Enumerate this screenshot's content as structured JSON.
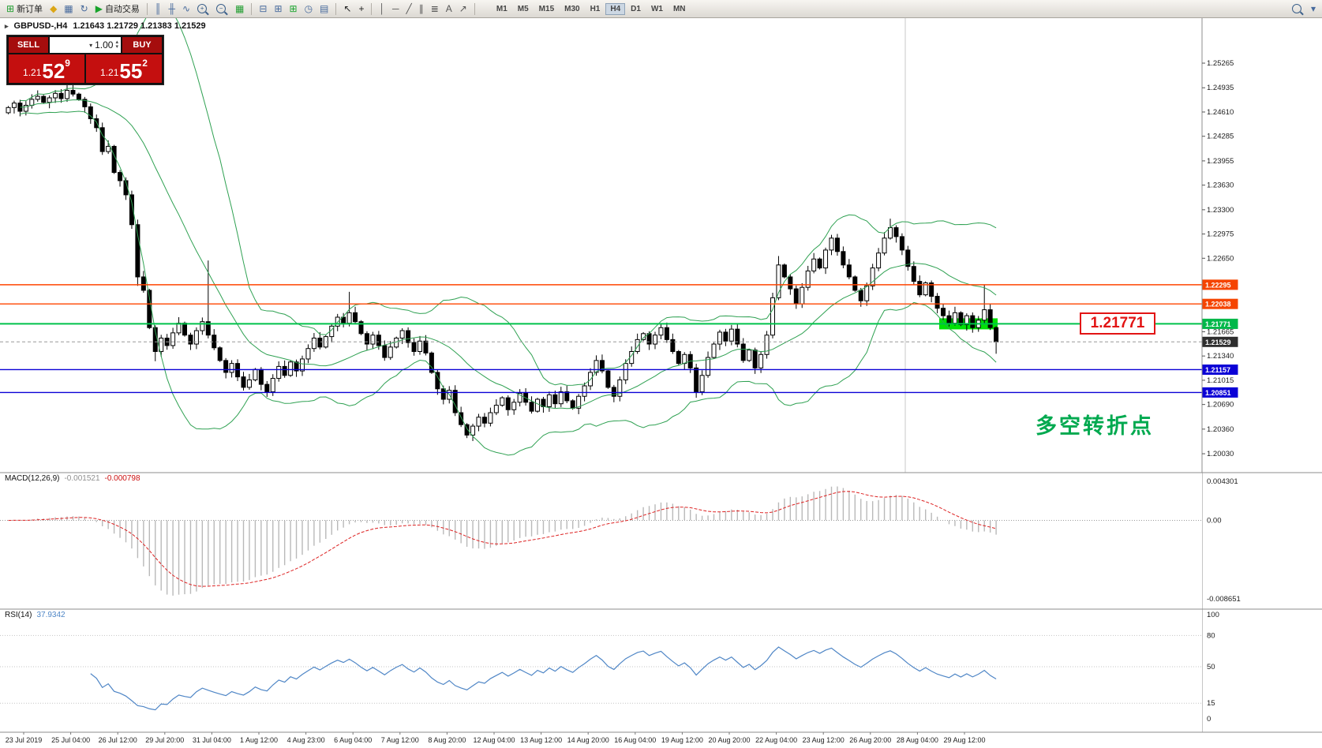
{
  "toolbar": {
    "items": [
      {
        "type": "button",
        "name": "new-order-button",
        "glyph": "⊞",
        "color": "#1f9d2f",
        "label": "新订单"
      },
      {
        "type": "icon",
        "name": "market-watch-icon",
        "glyph": "◆",
        "color": "#dba617"
      },
      {
        "type": "icon",
        "name": "data-window-icon",
        "glyph": "▦",
        "color": "#46699c"
      },
      {
        "type": "icon",
        "name": "navigator-icon",
        "glyph": "↻",
        "color": "#46699c"
      },
      {
        "type": "button",
        "name": "autotrading-button",
        "glyph": "▶",
        "color": "#18a32b",
        "label": "自动交易"
      },
      {
        "type": "sep"
      },
      {
        "type": "icon",
        "name": "bar-chart-icon",
        "glyph": "║",
        "color": "#46699c"
      },
      {
        "type": "icon",
        "name": "candlestick-chart-icon",
        "glyph": "╫",
        "color": "#46699c"
      },
      {
        "type": "icon",
        "name": "line-chart-icon",
        "glyph": "∿",
        "color": "#46699c"
      },
      {
        "type": "mag",
        "name": "zoom-in-icon",
        "sign": "+"
      },
      {
        "type": "mag",
        "name": "zoom-out-icon",
        "sign": "−"
      },
      {
        "type": "icon",
        "name": "grid-icon",
        "glyph": "▦",
        "color": "#1f9d2f"
      },
      {
        "type": "sep"
      },
      {
        "type": "icon",
        "name": "tile-windows-icon",
        "glyph": "⊟",
        "color": "#46699c"
      },
      {
        "type": "icon",
        "name": "cascade-windows-icon",
        "glyph": "⊞",
        "color": "#46699c"
      },
      {
        "type": "icon",
        "name": "new-chart-icon",
        "glyph": "⊞",
        "color": "#18a32b"
      },
      {
        "type": "icon",
        "name": "clock-icon",
        "glyph": "◷",
        "color": "#46699c"
      },
      {
        "type": "icon",
        "name": "chart-profile-icon",
        "glyph": "▤",
        "color": "#46699c"
      },
      {
        "type": "sep"
      },
      {
        "type": "icon",
        "name": "cursor-icon",
        "glyph": "↖",
        "color": "#222222"
      },
      {
        "type": "icon",
        "name": "crosshair-icon",
        "glyph": "+",
        "color": "#222222"
      },
      {
        "type": "sep"
      },
      {
        "type": "icon",
        "name": "vertical-line-tool-icon",
        "glyph": "│",
        "color": "#555555"
      },
      {
        "type": "icon",
        "name": "horizontal-line-tool-icon",
        "glyph": "─",
        "color": "#555555"
      },
      {
        "type": "icon",
        "name": "trendline-tool-icon",
        "glyph": "╱",
        "color": "#555555"
      },
      {
        "type": "icon",
        "name": "channel-tool-icon",
        "glyph": "∥",
        "color": "#555555"
      },
      {
        "type": "icon",
        "name": "fibonacci-tool-icon",
        "glyph": "≣",
        "color": "#555555"
      },
      {
        "type": "icon",
        "name": "text-tool-icon",
        "glyph": "A",
        "color": "#555555"
      },
      {
        "type": "icon",
        "name": "shapes-tool-icon",
        "glyph": "↗",
        "color": "#555555"
      },
      {
        "type": "sep"
      },
      {
        "type": "tf"
      },
      {
        "type": "right"
      },
      {
        "type": "mag",
        "name": "search-icon",
        "sign": ""
      },
      {
        "type": "icon",
        "name": "options-icon",
        "glyph": "▾",
        "color": "#46699c"
      }
    ],
    "timeframes": [
      "M1",
      "M5",
      "M15",
      "M30",
      "H1",
      "H4",
      "D1",
      "W1",
      "MN"
    ],
    "active_timeframe": "H4"
  },
  "chart": {
    "symbol_title": "GBPUSD-,H4",
    "ohlc_text": "1.21643 1.21729 1.21383 1.21529"
  },
  "trade_panel": {
    "sell_label": "SELL",
    "buy_label": "BUY",
    "volume": "1.00",
    "sell_price": {
      "small": "1.21",
      "big": "52",
      "sup": "9"
    },
    "buy_price": {
      "small": "1.21",
      "big": "55",
      "sup": "2"
    }
  },
  "icons": {
    "shift_marker": "▸",
    "spinner_up": "▴",
    "spinner_down": "▾",
    "dropdown": "▾"
  },
  "price_scale": {
    "plain_labels": [
      "1.25265",
      "1.24935",
      "1.24610",
      "1.24285",
      "1.23955",
      "1.23630",
      "1.23300",
      "1.22975",
      "1.22650",
      "1.21665",
      "1.21340",
      "1.21015",
      "1.20690",
      "1.20360",
      "1.20030"
    ],
    "badges": [
      {
        "text": "1.22295",
        "bg": "#f54400"
      },
      {
        "text": "1.22038",
        "bg": "#f54400"
      },
      {
        "text": "1.21771",
        "bg": "#00b84a"
      },
      {
        "text": "1.21529",
        "bg": "#2e2e2e"
      },
      {
        "text": "1.21157",
        "bg": "#0b00d6"
      },
      {
        "text": "1.20851",
        "bg": "#0b00d6"
      }
    ]
  },
  "macd": {
    "name": "MACD(12,26,9)",
    "value": "-0.001521",
    "signal_value": "-0.000798",
    "scale": [
      {
        "label": "0.004301",
        "v": 0.004301
      },
      {
        "label": "0.00",
        "v": 0
      },
      {
        "label": "-0.008651",
        "v": -0.008651
      }
    ],
    "histogram_color": "#b9b9b9",
    "signal_color": "#dd2222"
  },
  "rsi": {
    "name": "RSI(14)",
    "value": "37.9342",
    "scale": [
      {
        "label": "100",
        "v": 100
      },
      {
        "label": "80",
        "v": 80
      },
      {
        "label": "50",
        "v": 50
      },
      {
        "label": "15",
        "v": 15
      },
      {
        "label": "0",
        "v": 0
      }
    ],
    "levels": [
      80,
      50,
      15
    ],
    "line_color": "#4f86c6"
  },
  "timeline": [
    "23 Jul 2019",
    "25 Jul 04:00",
    "26 Jul 12:00",
    "29 Jul 20:00",
    "31 Jul 04:00",
    "1 Aug 12:00",
    "4 Aug 23:00",
    "6 Aug 04:00",
    "7 Aug 12:00",
    "8 Aug 20:00",
    "12 Aug 04:00",
    "13 Aug 12:00",
    "14 Aug 20:00",
    "16 Aug 04:00",
    "19 Aug 12:00",
    "20 Aug 20:00",
    "22 Aug 04:00",
    "23 Aug 12:00",
    "26 Aug 20:00",
    "28 Aug 04:00",
    "29 Aug 12:00"
  ],
  "annotations": {
    "price_label": "1.21771",
    "turning_point": "多空转折点",
    "highlight_color": "#00e205"
  },
  "chart_data": {
    "type": "candlestick",
    "symbol": "GBPUSD",
    "timeframe": "H4",
    "ohlc_current": {
      "open": 1.21643,
      "high": 1.21729,
      "low": 1.21383,
      "close": 1.21529
    },
    "first_open": 1.246,
    "closes": [
      1.2467,
      1.2473,
      1.2462,
      1.247,
      1.2478,
      1.2482,
      1.2474,
      1.248,
      1.2486,
      1.2479,
      1.249,
      1.2485,
      1.2478,
      1.2468,
      1.2452,
      1.244,
      1.2408,
      1.2415,
      1.238,
      1.2369,
      1.235,
      1.231,
      1.224,
      1.2222,
      1.2172,
      1.214,
      1.2158,
      1.2148,
      1.2165,
      1.2178,
      1.2162,
      1.215,
      1.2168,
      1.218,
      1.2162,
      1.2145,
      1.2128,
      1.2112,
      1.2124,
      1.2106,
      1.2092,
      1.2102,
      1.2116,
      1.2096,
      1.2086,
      1.2104,
      1.212,
      1.2108,
      1.2126,
      1.2114,
      1.213,
      1.2144,
      1.2158,
      1.2146,
      1.216,
      1.2174,
      1.2186,
      1.2178,
      1.2192,
      1.218,
      1.2164,
      1.215,
      1.2162,
      1.2148,
      1.2132,
      1.2146,
      1.2158,
      1.2168,
      1.2152,
      1.214,
      1.2154,
      1.2138,
      1.2112,
      1.209,
      1.2076,
      1.2088,
      1.2058,
      1.2042,
      1.2028,
      1.204,
      1.2052,
      1.2044,
      1.2058,
      1.2068,
      1.2078,
      1.2062,
      1.2072,
      1.2084,
      1.2072,
      1.206,
      1.2076,
      1.2066,
      1.2082,
      1.207,
      1.2086,
      1.2074,
      1.2064,
      1.208,
      1.2094,
      1.2112,
      1.2128,
      1.2114,
      1.2092,
      1.208,
      1.2102,
      1.2124,
      1.214,
      1.2156,
      1.2164,
      1.215,
      1.2162,
      1.2172,
      1.2156,
      1.214,
      1.2124,
      1.2136,
      1.2118,
      1.2086,
      1.2108,
      1.2132,
      1.215,
      1.2166,
      1.2154,
      1.217,
      1.215,
      1.2128,
      1.2142,
      1.2118,
      1.2136,
      1.2162,
      1.2212,
      1.2256,
      1.224,
      1.2224,
      1.2204,
      1.2226,
      1.2248,
      1.2264,
      1.2252,
      1.2276,
      1.2292,
      1.2274,
      1.2256,
      1.224,
      1.2222,
      1.2208,
      1.2228,
      1.2252,
      1.2272,
      1.2292,
      1.2306,
      1.2294,
      1.2276,
      1.2254,
      1.2234,
      1.2216,
      1.2232,
      1.2214,
      1.2198,
      1.2188,
      1.2178,
      1.2192,
      1.2176,
      1.2188,
      1.2172,
      1.2182,
      1.2196,
      1.2172,
      1.21529
    ],
    "wick_overrides": [
      {
        "i": 10,
        "h": 1.2498
      },
      {
        "i": 22,
        "l": 1.2228
      },
      {
        "i": 25,
        "l": 1.2127
      },
      {
        "i": 34,
        "h": 1.2262
      },
      {
        "i": 58,
        "h": 1.222
      },
      {
        "i": 78,
        "l": 1.2024
      },
      {
        "i": 117,
        "l": 1.2078
      },
      {
        "i": 131,
        "h": 1.2268
      },
      {
        "i": 150,
        "h": 1.2318
      },
      {
        "i": 166,
        "h": 1.223
      },
      {
        "i": 168,
        "l": 1.2137
      }
    ],
    "indicators": {
      "bollinger": {
        "period": 20,
        "deviation": 2,
        "color": "#2fa152"
      },
      "macd": {
        "fast": 12,
        "slow": 26,
        "signal": 9,
        "value": -0.001521,
        "signal_value": -0.000798
      },
      "rsi": {
        "period": 14,
        "value": 37.9342
      }
    },
    "hlines": [
      {
        "price": 1.22295,
        "color": "#ff4400",
        "width": 1.4
      },
      {
        "price": 1.22038,
        "color": "#ff4400",
        "width": 1.4
      },
      {
        "price": 1.21771,
        "color": "#00c24b",
        "width": 2
      },
      {
        "price": 1.21157,
        "color": "#0b00d6",
        "width": 1.4
      },
      {
        "price": 1.20851,
        "color": "#0b00d6",
        "width": 1.4
      },
      {
        "price": 1.21529,
        "color": "#999999",
        "width": 1,
        "dash": "4 3"
      }
    ],
    "y_axis": {
      "min": 1.19777,
      "max": 1.25868
    },
    "macd_axis": {
      "max": 0.004301,
      "min": -0.008651
    },
    "rsi_axis": {
      "min": 0,
      "max": 100
    }
  }
}
